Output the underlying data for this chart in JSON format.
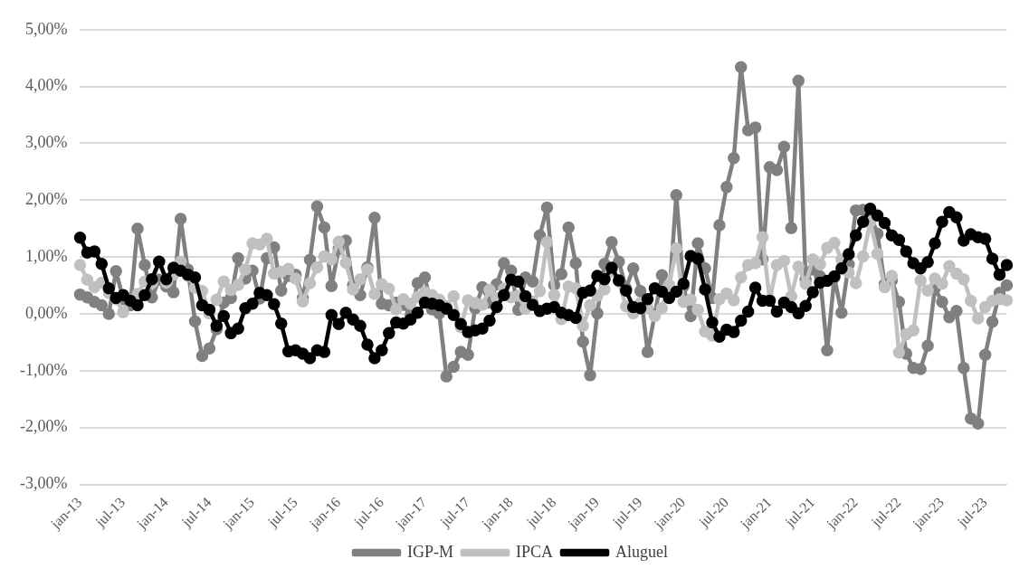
{
  "chart_data": {
    "type": "line",
    "categories": [
      "jan-13",
      null,
      null,
      null,
      null,
      null,
      "jul-13",
      null,
      null,
      null,
      null,
      null,
      "jan-14",
      null,
      null,
      null,
      null,
      null,
      "jul-14",
      null,
      null,
      null,
      null,
      null,
      "jan-15",
      null,
      null,
      null,
      null,
      null,
      "jul-15",
      null,
      null,
      null,
      null,
      null,
      "jan-16",
      null,
      null,
      null,
      null,
      null,
      "jul-16",
      null,
      null,
      null,
      null,
      null,
      "jan-17",
      null,
      null,
      null,
      null,
      null,
      "jul-17",
      null,
      null,
      null,
      null,
      null,
      "jan-18",
      null,
      null,
      null,
      null,
      null,
      "jul-18",
      null,
      null,
      null,
      null,
      null,
      "jan-19",
      null,
      null,
      null,
      null,
      null,
      "jul-19",
      null,
      null,
      null,
      null,
      null,
      "jan-20",
      null,
      null,
      null,
      null,
      null,
      "jul-20",
      null,
      null,
      null,
      null,
      null,
      "jan-21",
      null,
      null,
      null,
      null,
      null,
      "jul-21",
      null,
      null,
      null,
      null,
      null,
      "jan-22",
      null,
      null,
      null,
      null,
      null,
      "jul-22",
      null,
      null,
      null,
      null,
      null,
      "jan-23",
      null,
      null,
      null,
      null,
      null,
      "jul-23",
      null,
      null,
      null
    ],
    "series": [
      {
        "name": "IGP-M",
        "color": "#808080",
        "values": [
          0.34,
          0.29,
          0.21,
          0.15,
          0.0,
          0.75,
          0.26,
          0.15,
          1.5,
          0.86,
          0.29,
          0.6,
          0.48,
          0.38,
          1.67,
          0.78,
          -0.13,
          -0.74,
          -0.61,
          -0.27,
          0.2,
          0.28,
          0.98,
          0.62,
          0.76,
          0.27,
          0.98,
          1.17,
          0.41,
          0.67,
          0.69,
          0.28,
          0.95,
          1.89,
          1.52,
          0.49,
          1.14,
          1.29,
          0.51,
          0.33,
          0.82,
          1.69,
          0.18,
          0.15,
          0.2,
          0.16,
          -0.03,
          0.54,
          0.64,
          0.08,
          0.01,
          -1.1,
          -0.93,
          -0.67,
          -0.72,
          0.1,
          0.47,
          0.2,
          0.52,
          0.89,
          0.76,
          0.07,
          0.64,
          0.57,
          1.38,
          1.87,
          0.51,
          0.7,
          1.52,
          0.89,
          -0.49,
          -1.08,
          0.01,
          0.88,
          1.26,
          0.92,
          0.45,
          0.8,
          0.4,
          -0.67,
          -0.01,
          0.68,
          0.3,
          2.09,
          0.48,
          -0.04,
          1.24,
          0.8,
          0.28,
          1.56,
          2.23,
          2.74,
          4.34,
          3.23,
          3.28,
          0.96,
          2.58,
          2.53,
          2.94,
          1.51,
          4.1,
          0.6,
          0.78,
          0.66,
          -0.64,
          0.64,
          0.02,
          0.87,
          1.82,
          1.83,
          1.74,
          1.41,
          0.52,
          0.59,
          0.21,
          -0.7,
          -0.95,
          -0.97,
          -0.56,
          0.45,
          0.21,
          -0.06,
          0.05,
          -0.95,
          -1.84,
          -1.93,
          -0.72,
          -0.14,
          0.37,
          0.5
        ]
      },
      {
        "name": "IPCA",
        "color": "#c0c0c0",
        "values": [
          0.86,
          0.6,
          0.47,
          0.55,
          0.37,
          0.26,
          0.03,
          0.24,
          0.35,
          0.57,
          0.54,
          0.92,
          0.55,
          0.69,
          0.92,
          0.67,
          0.46,
          0.4,
          0.01,
          0.25,
          0.57,
          0.42,
          0.51,
          0.78,
          1.24,
          1.22,
          1.32,
          0.71,
          0.74,
          0.79,
          0.62,
          0.22,
          0.54,
          0.82,
          1.01,
          0.96,
          1.27,
          0.9,
          0.43,
          0.61,
          0.78,
          0.35,
          0.52,
          0.44,
          0.08,
          0.26,
          0.18,
          0.3,
          0.38,
          0.33,
          0.25,
          0.14,
          0.31,
          -0.23,
          0.24,
          0.19,
          0.16,
          0.42,
          0.28,
          0.44,
          0.29,
          0.32,
          0.09,
          0.22,
          0.4,
          1.26,
          0.33,
          -0.09,
          0.48,
          0.45,
          -0.21,
          0.15,
          0.32,
          0.43,
          0.75,
          0.57,
          0.13,
          0.01,
          0.19,
          0.11,
          -0.04,
          0.1,
          0.51,
          1.15,
          0.21,
          0.25,
          0.07,
          -0.31,
          -0.38,
          0.26,
          0.36,
          0.24,
          0.64,
          0.86,
          0.89,
          1.35,
          0.25,
          0.86,
          0.93,
          0.31,
          0.83,
          0.53,
          0.96,
          0.87,
          1.16,
          1.25,
          0.95,
          0.73,
          0.54,
          1.01,
          1.62,
          1.06,
          0.47,
          0.67,
          -0.68,
          -0.36,
          -0.29,
          0.59,
          0.41,
          0.62,
          0.53,
          0.84,
          0.71,
          0.61,
          0.23,
          -0.08,
          0.12,
          0.23,
          0.26,
          0.24
        ]
      },
      {
        "name": "Aluguel",
        "color": "#000000",
        "values": [
          1.34,
          1.08,
          1.1,
          0.88,
          0.45,
          0.28,
          0.33,
          0.23,
          0.15,
          0.33,
          0.61,
          0.92,
          0.61,
          0.81,
          0.76,
          0.69,
          0.64,
          0.15,
          0.07,
          -0.21,
          -0.04,
          -0.34,
          -0.26,
          0.1,
          0.18,
          0.37,
          0.33,
          0.17,
          -0.17,
          -0.66,
          -0.64,
          -0.7,
          -0.78,
          -0.64,
          -0.67,
          -0.02,
          -0.18,
          0.02,
          -0.1,
          -0.21,
          -0.54,
          -0.78,
          -0.64,
          -0.34,
          -0.15,
          -0.17,
          -0.1,
          0.02,
          0.2,
          0.18,
          0.15,
          0.09,
          -0.02,
          -0.18,
          -0.32,
          -0.29,
          -0.26,
          -0.12,
          0.12,
          0.33,
          0.6,
          0.57,
          0.31,
          0.16,
          0.05,
          0.09,
          0.12,
          0.02,
          -0.02,
          -0.07,
          0.37,
          0.41,
          0.67,
          0.61,
          0.81,
          0.59,
          0.41,
          0.12,
          0.1,
          0.26,
          0.45,
          0.39,
          0.28,
          0.39,
          0.53,
          1.02,
          0.97,
          0.43,
          -0.15,
          -0.4,
          -0.28,
          -0.32,
          -0.12,
          0.04,
          0.46,
          0.23,
          0.23,
          0.04,
          0.2,
          0.12,
          0.01,
          0.14,
          0.38,
          0.55,
          0.58,
          0.66,
          0.8,
          1.05,
          1.38,
          1.62,
          1.85,
          1.73,
          1.6,
          1.38,
          1.3,
          1.1,
          0.89,
          0.8,
          0.91,
          1.24,
          1.62,
          1.79,
          1.7,
          1.29,
          1.4,
          1.35,
          1.32,
          0.97,
          0.69,
          0.86
        ]
      }
    ],
    "ylim": [
      -3,
      5
    ],
    "yticks": [
      {
        "value": -3,
        "label": "-3,00%"
      },
      {
        "value": -2,
        "label": "-2,00%"
      },
      {
        "value": -1,
        "label": "-1,00%"
      },
      {
        "value": 0,
        "label": "0,00%"
      },
      {
        "value": 1,
        "label": "1,00%"
      },
      {
        "value": 2,
        "label": "2,00%"
      },
      {
        "value": 3,
        "label": "3,00%"
      },
      {
        "value": 4,
        "label": "4,00%"
      },
      {
        "value": 5,
        "label": "5,00%"
      }
    ],
    "grid": "y",
    "legend": "bottom",
    "marker": "circle",
    "line_style": "solid"
  }
}
